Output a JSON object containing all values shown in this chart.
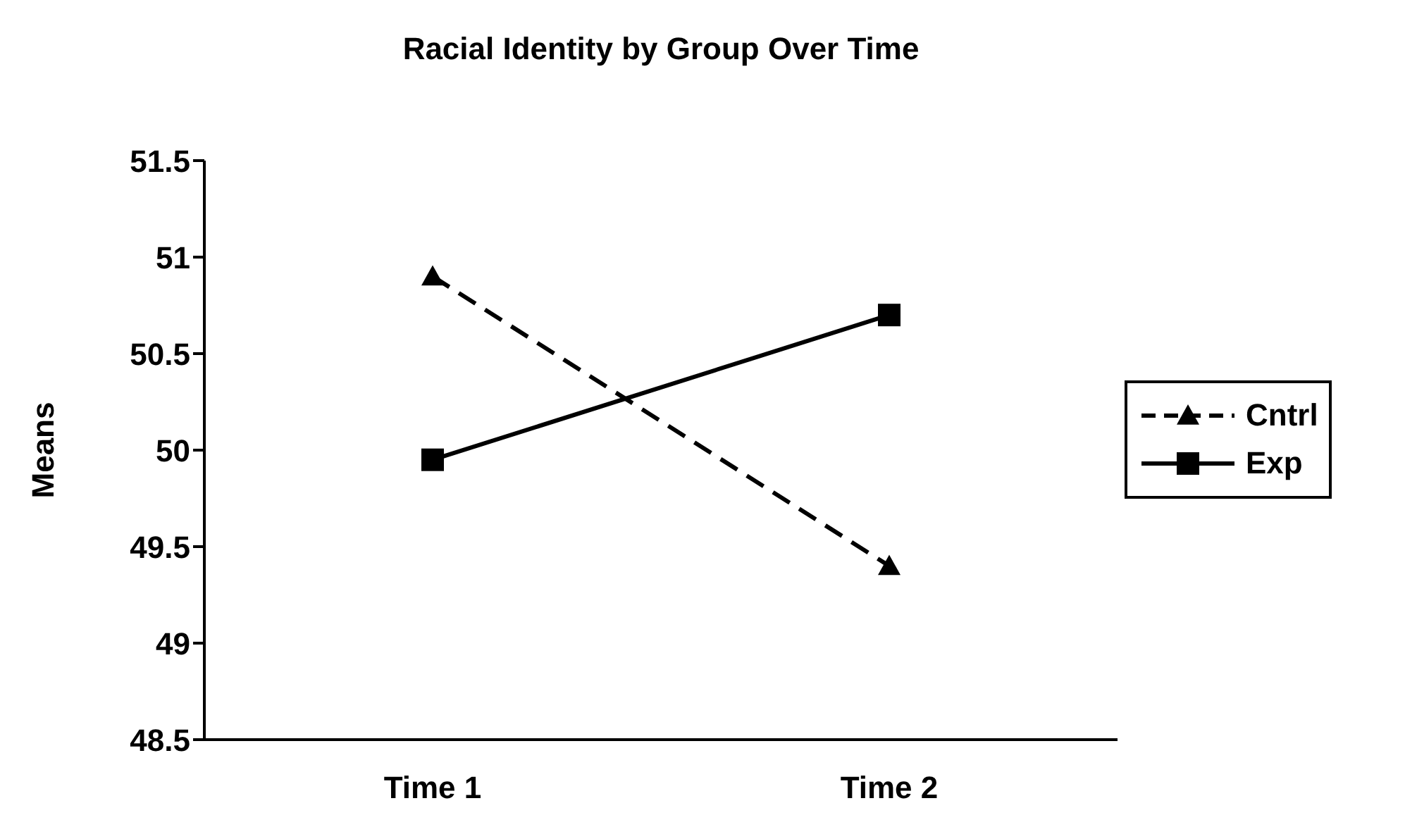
{
  "chart_data": {
    "type": "line",
    "title": "Racial Identity by Group Over Time",
    "ylabel": "Means",
    "categories": [
      "Time 1",
      "Time 2"
    ],
    "series": [
      {
        "name": "Cntrl",
        "color": "#000000",
        "values": [
          50.9,
          49.4
        ],
        "marker": "triangle",
        "line_style": "dashed"
      },
      {
        "name": "Exp",
        "color": "#000000",
        "values": [
          49.95,
          50.7
        ],
        "marker": "square",
        "line_style": "solid"
      }
    ],
    "ylim": [
      48.5,
      51.5
    ],
    "yticks": [
      48.5,
      49,
      49.5,
      50,
      50.5,
      51,
      51.5
    ],
    "grid": false,
    "legend": "right"
  }
}
